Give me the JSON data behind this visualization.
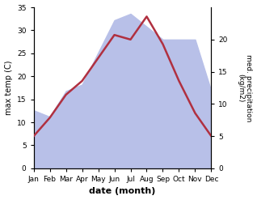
{
  "months": [
    "Jan",
    "Feb",
    "Mar",
    "Apr",
    "May",
    "Jun",
    "Jul",
    "Aug",
    "Sep",
    "Oct",
    "Nov",
    "Dec"
  ],
  "temperature": [
    7,
    11,
    16,
    19,
    24,
    29,
    28,
    33,
    27,
    19,
    12,
    7
  ],
  "precipitation": [
    9,
    8,
    12,
    13,
    18,
    23,
    24,
    22,
    20,
    20,
    20,
    12
  ],
  "temp_color": "#b03040",
  "precip_fill_color": "#b8c0e8",
  "temp_ylim": [
    0,
    35
  ],
  "precip_ylim": [
    0,
    25
  ],
  "temp_yticks": [
    0,
    5,
    10,
    15,
    20,
    25,
    30,
    35
  ],
  "precip_yticks": [
    0,
    5,
    10,
    15,
    20
  ],
  "xlabel": "date (month)",
  "ylabel_left": "max temp (C)",
  "ylabel_right": "med. precipitation\n(kg/m2)",
  "background_color": "#ffffff",
  "fig_width": 3.18,
  "fig_height": 2.47,
  "dpi": 100
}
